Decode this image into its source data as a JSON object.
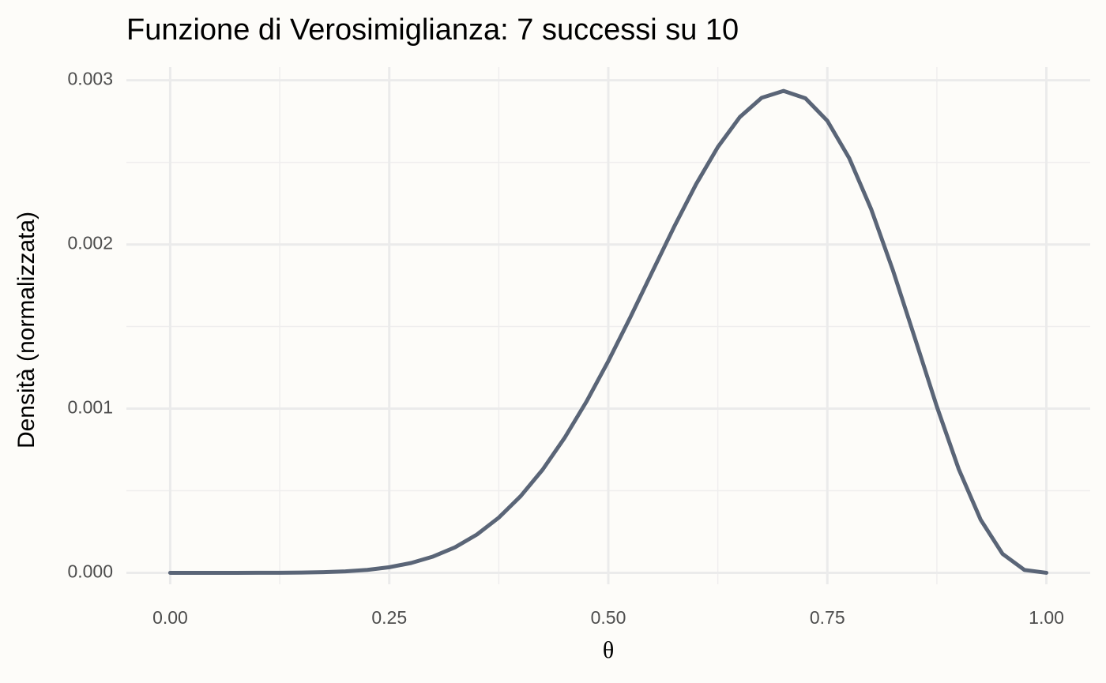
{
  "chart_data": {
    "type": "line",
    "title": "Funzione di Verosimiglianza: 7 successi su 10",
    "x_label": "θ",
    "y_label": "Densità (normalizzata)",
    "x": [
      0,
      0.025,
      0.05,
      0.075,
      0.1,
      0.125,
      0.15,
      0.175,
      0.2,
      0.225,
      0.25,
      0.275,
      0.3,
      0.325,
      0.35,
      0.375,
      0.4,
      0.425,
      0.45,
      0.475,
      0.5,
      0.525,
      0.55,
      0.575,
      0.6,
      0.625,
      0.65,
      0.675,
      0.7,
      0.725,
      0.75,
      0.775,
      0.8,
      0.825,
      0.85,
      0.875,
      0.9,
      0.925,
      0.95,
      0.975,
      1
    ],
    "series": [
      {
        "color": "#5a6577",
        "values": [
          0,
          0,
          0,
          0,
          1e-07,
          4e-07,
          1.4e-06,
          3.7e-06,
          8.7e-06,
          1.79e-05,
          3.4e-05,
          5.98e-05,
          9.9e-05,
          0.000155,
          0.000233,
          0.000336,
          0.000467,
          0.000628,
          0.000821,
          0.001042,
          0.001289,
          0.001555,
          0.001831,
          0.002106,
          0.002365,
          0.002593,
          0.002775,
          0.002893,
          0.002935,
          0.00289,
          0.002753,
          0.002525,
          0.002215,
          0.00184,
          0.001428,
          0.001012,
          0.000631,
          0.000323,
          0.000115,
          1.73e-05,
          0
        ]
      }
    ],
    "xlim": [
      -0.05,
      1.05
    ],
    "ylim": [
      -7e-05,
      0.00308
    ],
    "xticks": [
      {
        "value": 0,
        "label": "0.00"
      },
      {
        "value": 0.25,
        "label": "0.25"
      },
      {
        "value": 0.5,
        "label": "0.50"
      },
      {
        "value": 0.75,
        "label": "0.75"
      },
      {
        "value": 1,
        "label": "1.00"
      }
    ],
    "yticks": [
      {
        "value": 0,
        "label": "0.000"
      },
      {
        "value": 0.001,
        "label": "0.001"
      },
      {
        "value": 0.002,
        "label": "0.002"
      },
      {
        "value": 0.003,
        "label": "0.003"
      }
    ],
    "minor_xticks": [
      0.125,
      0.375,
      0.625,
      0.875
    ],
    "minor_yticks": [
      0.0005,
      0.0015,
      0.0025
    ],
    "grid": true
  }
}
